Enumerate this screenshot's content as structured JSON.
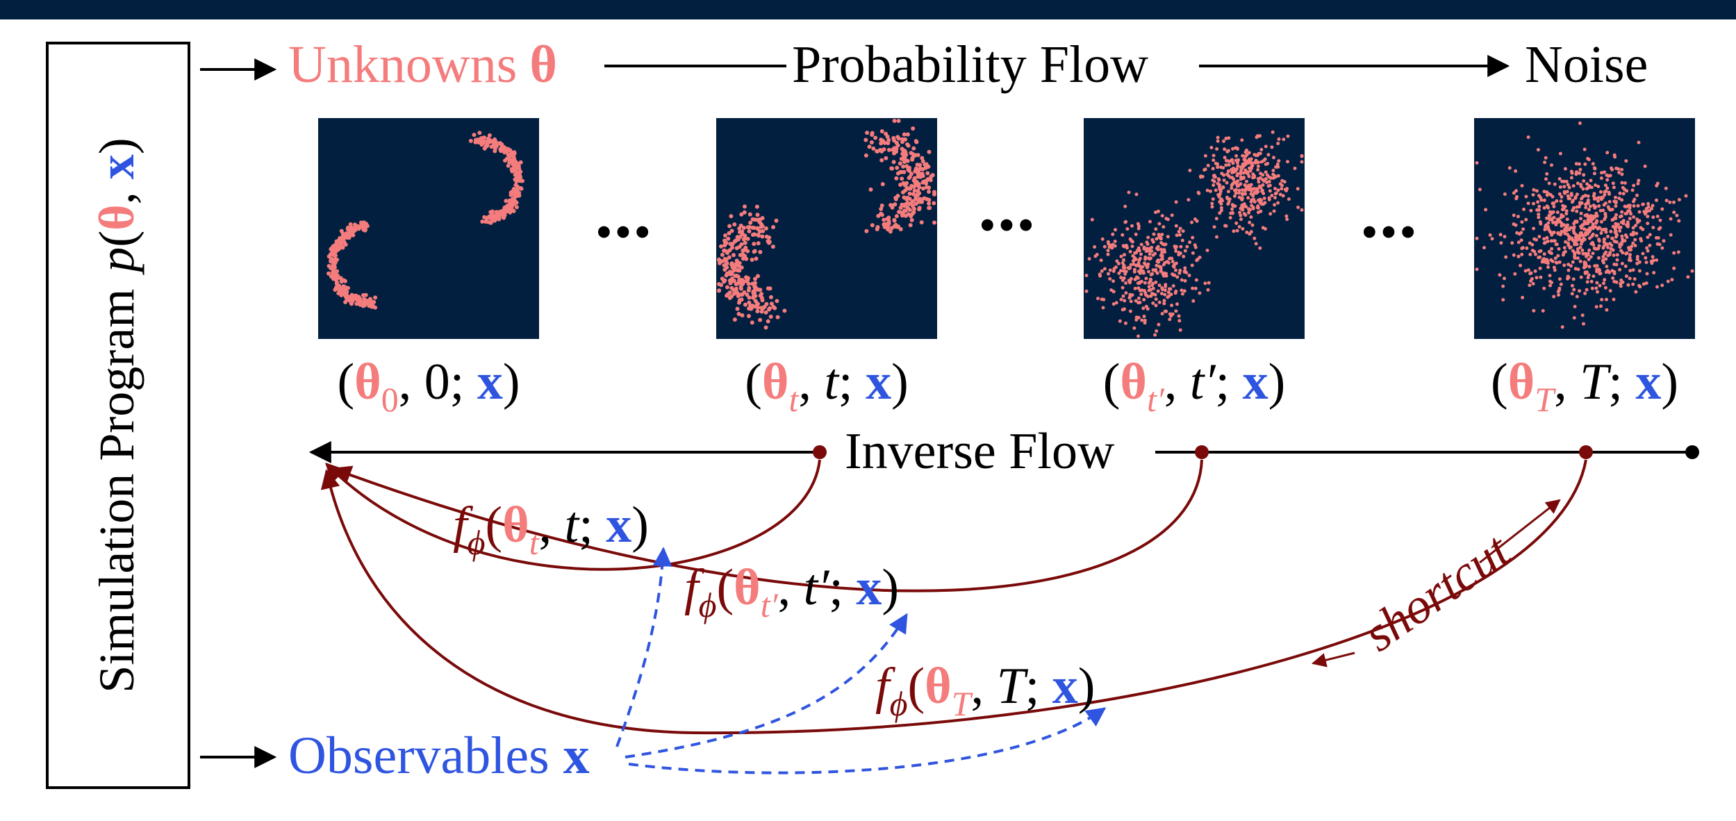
{
  "colors": {
    "background": "#ffffff",
    "frame": "#021f40",
    "unknown": "#f47c7c",
    "observable": "#2f55e0",
    "flow_arrow": "#7a0a0a",
    "text": "#000000",
    "plot_bg": "#021f40",
    "dots": "#f47c7c"
  },
  "simulator": {
    "label": "Simulation Program",
    "p": "p",
    "open": "(",
    "theta": "θ",
    "comma": ", ",
    "x": "x",
    "close": ")"
  },
  "top_row": {
    "unknowns_label": "Unknowns",
    "unknowns_symbol": "θ",
    "flow_label": "Probability Flow",
    "noise_label": "Noise"
  },
  "ellipsis": "•••",
  "stages": [
    {
      "theta": "θ",
      "sub": "0",
      "time": "0",
      "x": "x",
      "shape": "two-arcs"
    },
    {
      "theta": "θ",
      "sub": "t",
      "time": "t",
      "x": "x",
      "shape": "blurred-arcs"
    },
    {
      "theta": "θ",
      "sub": "t′",
      "time": "t′",
      "x": "x",
      "shape": "two-blobs"
    },
    {
      "theta": "θ",
      "sub": "T",
      "time": "T",
      "x": "x",
      "shape": "gaussian"
    }
  ],
  "inverse_flow_label": "Inverse Flow",
  "networks": [
    {
      "f": "f",
      "phi": "ϕ",
      "theta": "θ",
      "sub": "t",
      "time": "t",
      "x": "x"
    },
    {
      "f": "f",
      "phi": "ϕ",
      "theta": "θ",
      "sub": "t′",
      "time": "t′",
      "x": "x"
    },
    {
      "f": "f",
      "phi": "ϕ",
      "theta": "θ",
      "sub": "T",
      "time": "T",
      "x": "x"
    }
  ],
  "shortcut_label": "shortcut",
  "observables": {
    "label": "Observables",
    "symbol": "x"
  }
}
